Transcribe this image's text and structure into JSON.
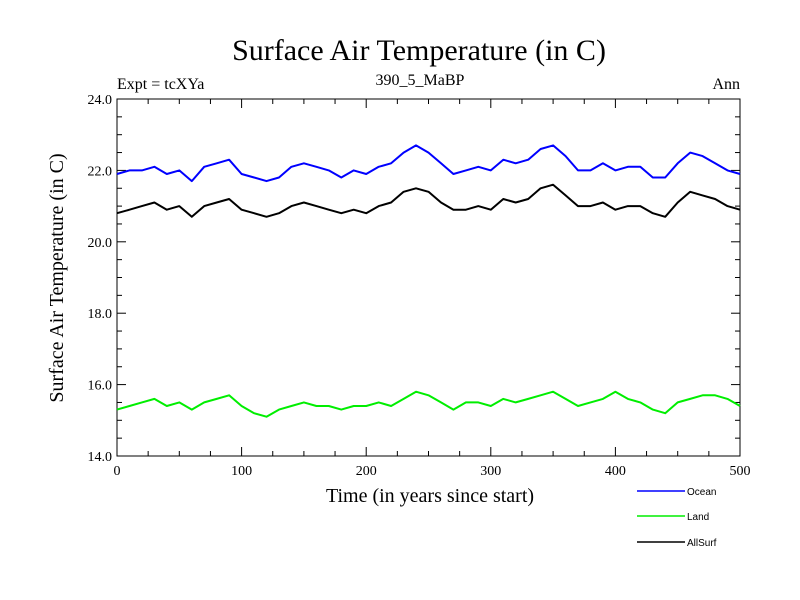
{
  "chart_data": {
    "type": "line",
    "title": "Surface Air Temperature (in C)",
    "subtitle_left": "Expt = tcXYa",
    "subtitle_center": "390_5_MaBP",
    "subtitle_right": "Ann",
    "xlabel": "Time (in years since start)",
    "ylabel": "Surface Air Temperature (in C)",
    "xlim": [
      0,
      500
    ],
    "ylim": [
      14.0,
      24.0
    ],
    "xticks": [
      0,
      100,
      200,
      300,
      400,
      500
    ],
    "xtick_labels": [
      "0",
      "100",
      "200",
      "300",
      "400",
      "500"
    ],
    "yticks": [
      14.0,
      16.0,
      18.0,
      20.0,
      22.0,
      24.0
    ],
    "ytick_labels": [
      "14.0",
      "16.0",
      "18.0",
      "20.0",
      "22.0",
      "24.0"
    ],
    "grid": false,
    "legend_position": "below-right",
    "x": [
      0,
      10,
      20,
      30,
      40,
      50,
      60,
      70,
      80,
      90,
      100,
      110,
      120,
      130,
      140,
      150,
      160,
      170,
      180,
      190,
      200,
      210,
      220,
      230,
      240,
      250,
      260,
      270,
      280,
      290,
      300,
      310,
      320,
      330,
      340,
      350,
      360,
      370,
      380,
      390,
      400,
      410,
      420,
      430,
      440,
      450,
      460,
      470,
      480,
      490,
      500
    ],
    "series": [
      {
        "name": "Ocean",
        "color": "#0000ff",
        "values": [
          21.9,
          22.0,
          22.0,
          22.1,
          21.9,
          22.0,
          21.7,
          22.1,
          22.2,
          22.3,
          21.9,
          21.8,
          21.7,
          21.8,
          22.1,
          22.2,
          22.1,
          22.0,
          21.8,
          22.0,
          21.9,
          22.1,
          22.2,
          22.5,
          22.7,
          22.5,
          22.2,
          21.9,
          22.0,
          22.1,
          22.0,
          22.3,
          22.2,
          22.3,
          22.6,
          22.7,
          22.4,
          22.0,
          22.0,
          22.2,
          22.0,
          22.1,
          22.1,
          21.8,
          21.8,
          22.2,
          22.5,
          22.4,
          22.2,
          22.0,
          21.9
        ]
      },
      {
        "name": "Land",
        "color": "#00ee00",
        "values": [
          15.3,
          15.4,
          15.5,
          15.6,
          15.4,
          15.5,
          15.3,
          15.5,
          15.6,
          15.7,
          15.4,
          15.2,
          15.1,
          15.3,
          15.4,
          15.5,
          15.4,
          15.4,
          15.3,
          15.4,
          15.4,
          15.5,
          15.4,
          15.6,
          15.8,
          15.7,
          15.5,
          15.3,
          15.5,
          15.5,
          15.4,
          15.6,
          15.5,
          15.6,
          15.7,
          15.8,
          15.6,
          15.4,
          15.5,
          15.6,
          15.8,
          15.6,
          15.5,
          15.3,
          15.2,
          15.5,
          15.6,
          15.7,
          15.7,
          15.6,
          15.4
        ]
      },
      {
        "name": "AllSurf",
        "color": "#000000",
        "values": [
          20.8,
          20.9,
          21.0,
          21.1,
          20.9,
          21.0,
          20.7,
          21.0,
          21.1,
          21.2,
          20.9,
          20.8,
          20.7,
          20.8,
          21.0,
          21.1,
          21.0,
          20.9,
          20.8,
          20.9,
          20.8,
          21.0,
          21.1,
          21.4,
          21.5,
          21.4,
          21.1,
          20.9,
          20.9,
          21.0,
          20.9,
          21.2,
          21.1,
          21.2,
          21.5,
          21.6,
          21.3,
          21.0,
          21.0,
          21.1,
          20.9,
          21.0,
          21.0,
          20.8,
          20.7,
          21.1,
          21.4,
          21.3,
          21.2,
          21.0,
          20.9
        ]
      }
    ]
  }
}
